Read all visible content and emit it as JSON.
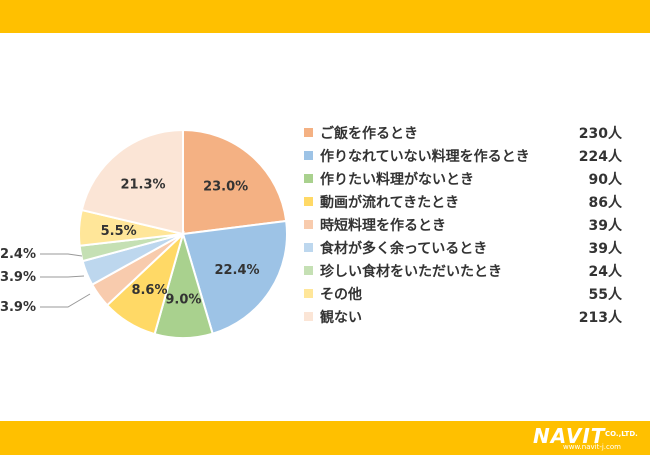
{
  "chart_data": {
    "type": "pie",
    "categories": [
      "ご飯を作るとき",
      "作りなれていない料理を作るとき",
      "作りたい料理がないとき",
      "動画が流れてきたとき",
      "時短料理を作るとき",
      "食材が多く余っているとき",
      "珍しい食材をいただいたとき",
      "その他",
      "観ない"
    ],
    "values": [
      23.0,
      22.4,
      9.0,
      8.6,
      3.9,
      3.9,
      2.4,
      5.5,
      21.3
    ],
    "percent_labels": [
      "23.0%",
      "22.4%",
      "9.0%",
      "8.6%",
      "3.9%",
      "3.9%",
      "2.4%",
      "5.5%",
      "21.3%"
    ],
    "counts": [
      "230人",
      "224人",
      "90人",
      "86人",
      "39人",
      "39人",
      "24人",
      "55人",
      "213人"
    ],
    "colors": [
      "#F4B183",
      "#9DC3E6",
      "#A9D18E",
      "#FFD966",
      "#F8CBAD",
      "#BDD7EE",
      "#C5E0B4",
      "#FFE699",
      "#FBE5D6"
    ],
    "legend_position": "right"
  },
  "logo": {
    "name": "NAVIT",
    "suffix": "CO.,LTD.",
    "url": "www.navit-j.com"
  }
}
